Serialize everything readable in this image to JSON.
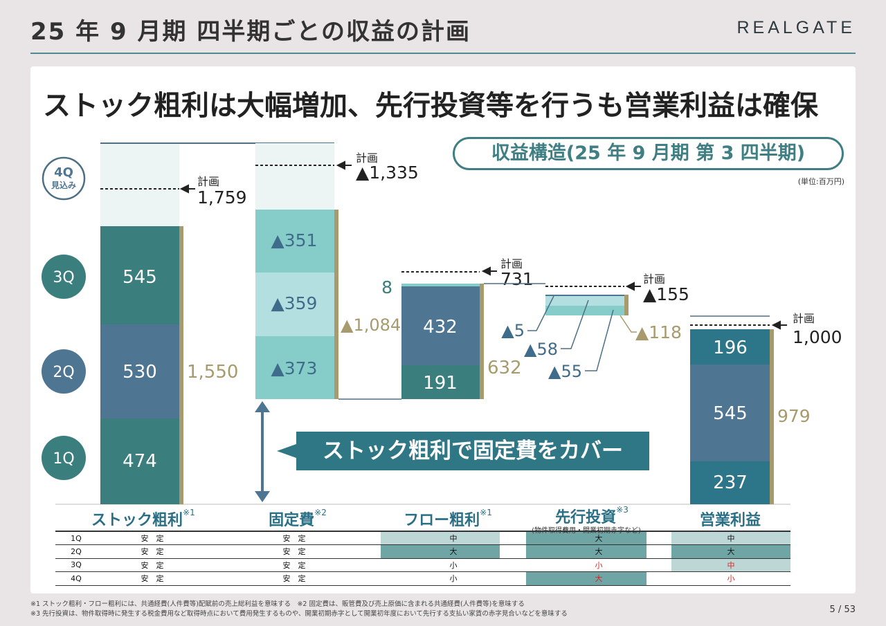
{
  "header": {
    "title": "25 年 9 月期 四半期ごとの収益の計画",
    "logo": "REALGATE"
  },
  "headline": "ストック粗利は大幅増加、先行投資等を行うも営業利益は確保",
  "badge": "収益構造(25 年 9 月期 第 3 四半期)",
  "unit": "(単位:百万円)",
  "banner": "ストック粗利で固定費をカバー",
  "colors": {
    "stock_1q": "#3a7f7e",
    "stock_2q": "#4e7592",
    "stock_3q": "#3b807d",
    "fixed_1q": "#86cdc9",
    "fixed_2q": "#b4dfe0",
    "fixed_3q": "#86cdc9",
    "forecast": "#edf4f4",
    "gold": "#a79a6c"
  },
  "quarter_circles": [
    {
      "label": "4Q\n見込み",
      "color": "#ffffff"
    },
    {
      "label": "3Q",
      "color": "#3a7f7e"
    },
    {
      "label": "2Q",
      "color": "#4e7592"
    },
    {
      "label": "1Q",
      "color": "#3a7f7e"
    }
  ],
  "chart_data": {
    "type": "bar",
    "subtype": "waterfall",
    "categories": [
      "ストック粗利",
      "固定費",
      "フロー粗利",
      "先行投資",
      "営業利益"
    ],
    "quarters": [
      "1Q",
      "2Q",
      "3Q"
    ],
    "stock_gross_profit": {
      "values": [
        "474",
        "530",
        "545"
      ],
      "total": "1,550",
      "plan_label": "計画",
      "plan": "1,759"
    },
    "fixed_cost": {
      "values": [
        "▲373",
        "▲359",
        "▲351"
      ],
      "total": "▲1,084",
      "plan_label": "計画",
      "plan": "▲1,335"
    },
    "flow_gross_profit": {
      "values": [
        "191",
        "432",
        "8"
      ],
      "total": "632",
      "plan_label": "計画",
      "plan": "731"
    },
    "upfront_investment": {
      "values": [
        "▲55",
        "▲58",
        "▲5"
      ],
      "total": "▲118",
      "plan_label": "計画",
      "plan": "▲155"
    },
    "operating_profit": {
      "values": [
        "237",
        "545",
        "196"
      ],
      "total": "979",
      "plan_label": "計画",
      "plan": "1,000"
    }
  },
  "categories_labels": [
    {
      "name": "ストック粗利",
      "note": "※1"
    },
    {
      "name": "固定費",
      "note": "※2"
    },
    {
      "name": "フロー粗利",
      "note": "※1"
    },
    {
      "name": "先行投資",
      "note": "※3"
    },
    {
      "name": "営業利益",
      "note": ""
    }
  ],
  "investment_sub": "(物件取得費用・開業初期赤字など)",
  "table": [
    {
      "q": "1Q",
      "cells": [
        "安　定",
        "安　定",
        "中",
        "大",
        "中"
      ]
    },
    {
      "q": "2Q",
      "cells": [
        "安　定",
        "安　定",
        "大",
        "大",
        "大"
      ]
    },
    {
      "q": "3Q",
      "cells": [
        "安　定",
        "安　定",
        "小",
        "小",
        "中"
      ]
    },
    {
      "q": "4Q",
      "cells": [
        "安　定",
        "安　定",
        "小",
        "大",
        "小"
      ]
    }
  ],
  "footnotes": [
    "※1 ストック粗利・フロー粗利には、共通経費(人件費等)配賦前の売上総利益を意味する　※2 固定費は、販管費及び売上原価に含まれる共通経費(人件費等)を意味する",
    "※3 先行投資は、物件取得時に発生する税金費用など取得時点において費用発生するものや、開業初期赤字として開業初年度において先行する支払い家賃の赤字見合いなどを意味する"
  ],
  "page": {
    "current": "5",
    "sep": "/",
    "total": "53"
  }
}
